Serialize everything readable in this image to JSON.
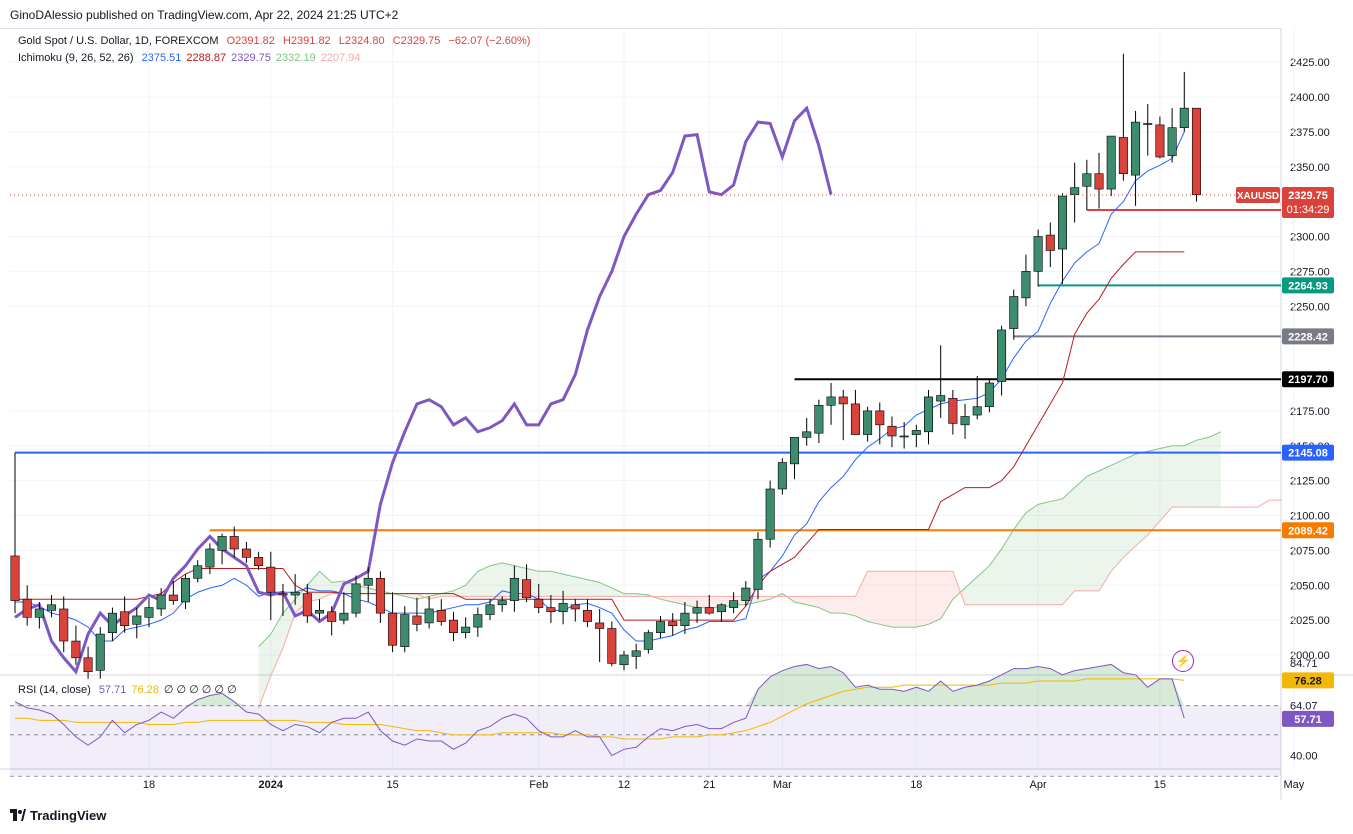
{
  "header": {
    "publisher": "GinoDAlessio published on TradingView.com, Apr 22, 2024 21:25 UTC+2"
  },
  "legend": {
    "symbol": "Gold Spot / U.S. Dollar, 1D, FOREXCOM",
    "ohlc": {
      "o": "O2391.82",
      "h": "H2391.82",
      "l": "L2324.80",
      "c": "C2329.75",
      "chg": "−62.07 (−2.60%)"
    },
    "ichimoku_label": "Ichimoku (9, 26, 52, 26)",
    "ichimoku_values": [
      {
        "v": "2375.51",
        "color": "#2962ff"
      },
      {
        "v": "2288.87",
        "color": "#b71c1c"
      },
      {
        "v": "2329.75",
        "color": "#7e57c2"
      },
      {
        "v": "2332.19",
        "color": "#81c784"
      },
      {
        "v": "2207.94",
        "color": "#f7a9a7"
      }
    ],
    "rsi_label": "RSI (14, close)",
    "rsi_values": [
      {
        "v": "57.71",
        "color": "#7e57c2"
      },
      {
        "v": "76.28",
        "color": "#f2b805"
      },
      {
        "v": "∅ ∅ ∅ ∅ ∅ ∅",
        "color": "#131722"
      }
    ]
  },
  "footer": {
    "brand": "TradingView"
  },
  "colors": {
    "up": "#26a69a",
    "down": "#ef5350",
    "bodyUp": "#3d8c6e",
    "bodyDown": "#d9433c",
    "tenkan": "#2962ff",
    "kijun": "#b71c1c",
    "chikou": "#7e57c2",
    "spanA": "#81c784",
    "spanB": "#f7a9a7",
    "rsi": "#7e57c2",
    "rsiMa": "#f2b805"
  },
  "chart_data": {
    "type": "candlestick",
    "symbol": "XAUUSD",
    "timeframe": "1D",
    "y_ticks": [
      2425,
      2400,
      2375,
      2350,
      2300,
      2275,
      2250,
      2175,
      2150,
      2125,
      2100,
      2075,
      2050,
      2025,
      2000
    ],
    "y_tick_labels": [
      "2425.00",
      "2400.00",
      "2375.00",
      "2350.00",
      "2300.00",
      "2275.00",
      "2250.00",
      "2175.00",
      "2150.00",
      "2125.00",
      "2100.00",
      "2075.00",
      "2050.00",
      "2025.00",
      "2000.00"
    ],
    "x_ticks": [
      {
        "label": "18",
        "i": 11
      },
      {
        "label": "2024",
        "i": 21
      },
      {
        "label": "15",
        "i": 31
      },
      {
        "label": "Feb",
        "i": 43
      },
      {
        "label": "12",
        "i": 50
      },
      {
        "label": "21",
        "i": 57
      },
      {
        "label": "Mar",
        "i": 63
      },
      {
        "label": "18",
        "i": 74
      },
      {
        "label": "Apr",
        "i": 84
      },
      {
        "label": "15",
        "i": 94
      },
      {
        "label": "May",
        "i": 105
      }
    ],
    "candles": [
      [
        2071,
        2145,
        2030,
        2039
      ],
      [
        2040,
        2050,
        2021,
        2027
      ],
      [
        2027,
        2038,
        2019,
        2033
      ],
      [
        2032,
        2043,
        2027,
        2036
      ],
      [
        2033,
        2042,
        2002,
        2010
      ],
      [
        2010,
        2021,
        1993,
        1998
      ],
      [
        1998,
        2006,
        1983,
        1988
      ],
      [
        1989,
        2020,
        1983,
        2015
      ],
      [
        2016,
        2034,
        2010,
        2030
      ],
      [
        2031,
        2042,
        2016,
        2021
      ],
      [
        2022,
        2034,
        2012,
        2028
      ],
      [
        2027,
        2041,
        2020,
        2034
      ],
      [
        2033,
        2048,
        2028,
        2043
      ],
      [
        2043,
        2053,
        2036,
        2039
      ],
      [
        2038,
        2058,
        2033,
        2055
      ],
      [
        2055,
        2068,
        2052,
        2064
      ],
      [
        2063,
        2080,
        2058,
        2076
      ],
      [
        2075,
        2087,
        2065,
        2085
      ],
      [
        2085,
        2092,
        2070,
        2076
      ],
      [
        2076,
        2081,
        2066,
        2070
      ],
      [
        2070,
        2074,
        2061,
        2064
      ],
      [
        2063,
        2074,
        2025,
        2045
      ],
      [
        2044,
        2051,
        2028,
        2043
      ],
      [
        2043,
        2058,
        2036,
        2045
      ],
      [
        2044,
        2051,
        2023,
        2028
      ],
      [
        2030,
        2040,
        2025,
        2032
      ],
      [
        2031,
        2035,
        2014,
        2024
      ],
      [
        2025,
        2045,
        2022,
        2030
      ],
      [
        2030,
        2057,
        2027,
        2051
      ],
      [
        2050,
        2063,
        2038,
        2055
      ],
      [
        2055,
        2060,
        2023,
        2030
      ],
      [
        2030,
        2045,
        2002,
        2007
      ],
      [
        2006,
        2035,
        2002,
        2029
      ],
      [
        2028,
        2041,
        2017,
        2022
      ],
      [
        2023,
        2042,
        2019,
        2033
      ],
      [
        2032,
        2040,
        2021,
        2024
      ],
      [
        2025,
        2031,
        2010,
        2016
      ],
      [
        2016,
        2027,
        2012,
        2020
      ],
      [
        2020,
        2034,
        2013,
        2029
      ],
      [
        2029,
        2040,
        2025,
        2036
      ],
      [
        2036,
        2042,
        2031,
        2039
      ],
      [
        2039,
        2064,
        2031,
        2055
      ],
      [
        2054,
        2065,
        2038,
        2041
      ],
      [
        2040,
        2051,
        2030,
        2034
      ],
      [
        2034,
        2043,
        2023,
        2031
      ],
      [
        2031,
        2046,
        2022,
        2037
      ],
      [
        2036,
        2040,
        2024,
        2033
      ],
      [
        2032,
        2040,
        2020,
        2024
      ],
      [
        2023,
        2033,
        1995,
        2019
      ],
      [
        2019,
        2024,
        1992,
        1994
      ],
      [
        1993,
        2003,
        1989,
        2000
      ],
      [
        1999,
        2008,
        1990,
        2003
      ],
      [
        2004,
        2018,
        2001,
        2016
      ],
      [
        2016,
        2028,
        2012,
        2024
      ],
      [
        2024,
        2030,
        2014,
        2021
      ],
      [
        2021,
        2038,
        2015,
        2030
      ],
      [
        2030,
        2039,
        2023,
        2034
      ],
      [
        2034,
        2043,
        2029,
        2030
      ],
      [
        2031,
        2037,
        2024,
        2036
      ],
      [
        2034,
        2045,
        2030,
        2039
      ],
      [
        2039,
        2053,
        2035,
        2048
      ],
      [
        2047,
        2088,
        2040,
        2083
      ],
      [
        2083,
        2125,
        2077,
        2119
      ],
      [
        2119,
        2141,
        2115,
        2138
      ],
      [
        2137,
        2155,
        2126,
        2156
      ],
      [
        2156,
        2170,
        2150,
        2160
      ],
      [
        2159,
        2183,
        2152,
        2179
      ],
      [
        2179,
        2195,
        2165,
        2185
      ],
      [
        2185,
        2190,
        2154,
        2180
      ],
      [
        2180,
        2190,
        2160,
        2158
      ],
      [
        2158,
        2178,
        2153,
        2175
      ],
      [
        2175,
        2181,
        2151,
        2165
      ],
      [
        2164,
        2171,
        2149,
        2157
      ],
      [
        2157,
        2167,
        2148,
        2157
      ],
      [
        2158,
        2165,
        2149,
        2161
      ],
      [
        2160,
        2190,
        2151,
        2185
      ],
      [
        2182,
        2222,
        2170,
        2186
      ],
      [
        2184,
        2190,
        2158,
        2166
      ],
      [
        2165,
        2180,
        2155,
        2171
      ],
      [
        2172,
        2200,
        2169,
        2178
      ],
      [
        2178,
        2197,
        2174,
        2195
      ],
      [
        2196,
        2236,
        2186,
        2233
      ],
      [
        2234,
        2262,
        2226,
        2257
      ],
      [
        2256,
        2287,
        2250,
        2275
      ],
      [
        2275,
        2305,
        2264,
        2300
      ],
      [
        2301,
        2310,
        2278,
        2290
      ],
      [
        2291,
        2331,
        2266,
        2329
      ],
      [
        2330,
        2353,
        2310,
        2335
      ],
      [
        2336,
        2355,
        2319,
        2345
      ],
      [
        2345,
        2360,
        2320,
        2334
      ],
      [
        2334,
        2372,
        2329,
        2372
      ],
      [
        2371,
        2431,
        2340,
        2345
      ],
      [
        2344,
        2390,
        2322,
        2382
      ],
      [
        2381,
        2395,
        2358,
        2381
      ],
      [
        2380,
        2386,
        2356,
        2357
      ],
      [
        2358,
        2392,
        2353,
        2378
      ],
      [
        2378,
        2418,
        2375,
        2392
      ],
      [
        2392,
        2392,
        2325,
        2330
      ]
    ],
    "tenkan": [
      2038,
      2038,
      2035,
      2030,
      2028,
      2025,
      2020,
      2010,
      2010,
      2018,
      2020,
      2022,
      2025,
      2030,
      2040,
      2045,
      2048,
      2050,
      2055,
      2050,
      2042,
      2045,
      2045,
      2045,
      2048,
      2046,
      2046,
      2044,
      2040,
      2038,
      2034,
      2030,
      2030,
      2030,
      2030,
      2032,
      2034,
      2036,
      2036,
      2038,
      2046,
      2044,
      2044,
      2040,
      2032,
      2032,
      2036,
      2037,
      2034,
      2030,
      2018,
      2010,
      2010,
      2012,
      2014,
      2018,
      2020,
      2024,
      2024,
      2024,
      2026,
      2054,
      2060,
      2071,
      2086,
      2094,
      2110,
      2120,
      2128,
      2140,
      2149,
      2155,
      2162,
      2164,
      2172,
      2176,
      2180,
      2182,
      2183,
      2184,
      2188,
      2198,
      2213,
      2225,
      2232,
      2252,
      2268,
      2281,
      2289,
      2295,
      2316,
      2325,
      2340,
      2347,
      2351,
      2356,
      2375
    ],
    "kijun": [
      2040,
      2040,
      2040,
      2040,
      2040,
      2040,
      2040,
      2040,
      2040,
      2040,
      2040,
      2042,
      2044,
      2052,
      2058,
      2062,
      2062,
      2062,
      2062,
      2062,
      2062,
      2062,
      2062,
      2050,
      2045,
      2045,
      2045,
      2044,
      2044,
      2044,
      2044,
      2044,
      2044,
      2044,
      2044,
      2044,
      2044,
      2040,
      2040,
      2040,
      2040,
      2040,
      2040,
      2040,
      2040,
      2040,
      2040,
      2040,
      2040,
      2040,
      2025,
      2025,
      2025,
      2025,
      2025,
      2025,
      2025,
      2025,
      2025,
      2025,
      2035,
      2050,
      2060,
      2065,
      2070,
      2080,
      2090,
      2090,
      2090,
      2090,
      2090,
      2090,
      2090,
      2090,
      2090,
      2090,
      2110,
      2115,
      2120,
      2120,
      2120,
      2125,
      2135,
      2150,
      2165,
      2180,
      2195,
      2230,
      2245,
      2255,
      2270,
      2280,
      2289,
      2289,
      2289,
      2289,
      2289
    ],
    "chikou_start_index": 0,
    "chikou": [
      2027,
      2033,
      2036,
      2010,
      1998,
      1988,
      2015,
      2030,
      2021,
      2028,
      2034,
      2043,
      2039,
      2055,
      2064,
      2076,
      2085,
      2076,
      2070,
      2064,
      2045,
      2043,
      2045,
      2028,
      2032,
      2024,
      2030,
      2051,
      2055,
      2060,
      2108,
      2138,
      2160,
      2180,
      2183,
      2178,
      2165,
      2170,
      2160,
      2163,
      2168,
      2180,
      2165,
      2165,
      2180,
      2183,
      2201,
      2233,
      2257,
      2275,
      2300,
      2316,
      2330,
      2333,
      2346,
      2372,
      2373,
      2332,
      2330,
      2337,
      2368,
      2382,
      2381,
      2357,
      2383,
      2392,
      2365,
      2330
    ],
    "span_a": [
      {
        "from": 20,
        "values": [
          2006,
          2015,
          2030,
          2040,
          2050,
          2060,
          2052,
          2053,
          2050,
          2048,
          2046,
          2044,
          2042,
          2040,
          2042,
          2044,
          2046,
          2050,
          2060,
          2064,
          2066,
          2064,
          2062,
          2060,
          2060,
          2058,
          2056,
          2054,
          2052,
          2048,
          2044,
          2044,
          2043,
          2040,
          2038,
          2036,
          2034,
          2034,
          2034,
          2036,
          2036,
          2038,
          2040,
          2044,
          2038,
          2036,
          2034,
          2030,
          2030,
          2028,
          2024,
          2022,
          2020,
          2020,
          2020,
          2022,
          2026,
          2040,
          2048,
          2056,
          2064,
          2076,
          2090,
          2102,
          2108,
          2110,
          2112,
          2120,
          2128,
          2132,
          2136,
          2140,
          2144,
          2146,
          2148,
          2150,
          2150,
          2154,
          2156,
          2160
        ]
      }
    ],
    "span_b": [
      {
        "from": 20,
        "values": [
          1962,
          1985,
          2005,
          2030,
          2038,
          2040,
          2044,
          2044,
          2044,
          2044,
          2044,
          2044,
          2044,
          2044,
          2040,
          2042,
          2042,
          2042,
          2042,
          2042,
          2042,
          2042,
          2042,
          2042,
          2042,
          2042,
          2042,
          2042,
          2042,
          2042,
          2042,
          2042,
          2042,
          2042,
          2042,
          2042,
          2042,
          2042,
          2042,
          2042,
          2042,
          2042,
          2042,
          2042,
          2042,
          2042,
          2042,
          2042,
          2042,
          2042,
          2060,
          2060,
          2060,
          2060,
          2060,
          2060,
          2060,
          2060,
          2036,
          2036,
          2036,
          2036,
          2036,
          2036,
          2036,
          2036,
          2036,
          2046,
          2046,
          2046,
          2060,
          2070,
          2078,
          2086,
          2096,
          2106,
          2106,
          2106,
          2106,
          2106,
          2106,
          2106,
          2106,
          2111,
          2111
        ]
      }
    ],
    "hlines": [
      {
        "price": 2145.08,
        "label": "2145.08",
        "color": "#2962ff",
        "from": 0,
        "width": 2
      },
      {
        "price": 2089.42,
        "label": "2089.42",
        "color": "#f57c00",
        "from": 16,
        "width": 2
      },
      {
        "price": 2197.7,
        "label": "2197.70",
        "color": "#000000",
        "from": 64,
        "width": 2
      },
      {
        "price": 2228.42,
        "label": "2228.42",
        "color": "#787b86",
        "from": 82,
        "width": 2
      },
      {
        "price": 2264.93,
        "label": "2264.93",
        "color": "#089981",
        "from": 84,
        "width": 2
      },
      {
        "price": 2318.98,
        "label": "2318.98",
        "color": "#d9433c",
        "from": 88,
        "width": 2
      }
    ],
    "last_price": {
      "symbol": "XAUUSD",
      "price": 2329.75,
      "label": "2329.75",
      "countdown": "01:34:29"
    },
    "rsi_ticks": [
      {
        "label": "84.71",
        "v": 84.71
      },
      {
        "label": "64.07",
        "v": 64.07
      },
      {
        "label": "40.00",
        "v": 40
      }
    ],
    "rsi_last": {
      "value": "57.71",
      "ma": "76.28"
    },
    "rsi": [
      66,
      63,
      62,
      60,
      55,
      49,
      45,
      49,
      57,
      51,
      55,
      57,
      61,
      58,
      63,
      67,
      69,
      70,
      66,
      61,
      60,
      55,
      52,
      55,
      54,
      51,
      56,
      58,
      58,
      61,
      52,
      47,
      45,
      48,
      47,
      47,
      43,
      46,
      52,
      54,
      58,
      60,
      58,
      52,
      49,
      49,
      52,
      49,
      49,
      40,
      43,
      44,
      49,
      53,
      52,
      54,
      55,
      53,
      53,
      56,
      58,
      72,
      78,
      81,
      83,
      84,
      82,
      83,
      80,
      73,
      74,
      72,
      72,
      71,
      73,
      71,
      76,
      71,
      73,
      74,
      76,
      79,
      82,
      82,
      83,
      82,
      79,
      81,
      82,
      83,
      84,
      80,
      79,
      73,
      77,
      77,
      58
    ],
    "rsi_ma": [
      58,
      58,
      57,
      57,
      57,
      56,
      56,
      56,
      56,
      56,
      56,
      55,
      55,
      55,
      56,
      56,
      57,
      57,
      57,
      57,
      57,
      57,
      57,
      57,
      56,
      56,
      56,
      55,
      55,
      55,
      55,
      54,
      53,
      52,
      52,
      51,
      50,
      50,
      50,
      50,
      51,
      51,
      51,
      51,
      51,
      50,
      50,
      50,
      49,
      49,
      48,
      48,
      48,
      48,
      49,
      49,
      49,
      50,
      50,
      51,
      52,
      54,
      56,
      59,
      62,
      65,
      67,
      69,
      71,
      72,
      73,
      73,
      73,
      74,
      74,
      74,
      74,
      74,
      74,
      74,
      74,
      75,
      75,
      75,
      76,
      76,
      76,
      76,
      77,
      77,
      77,
      77,
      77,
      77,
      77,
      77,
      76.3
    ]
  }
}
